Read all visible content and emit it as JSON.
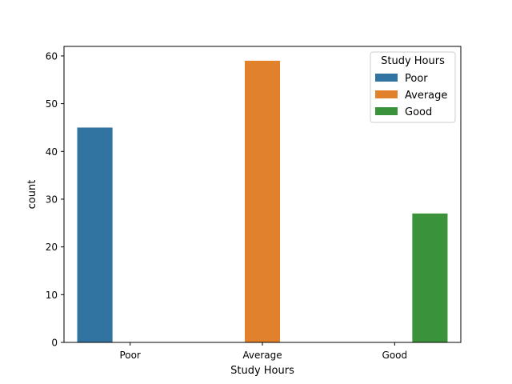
{
  "chart_data": {
    "type": "bar",
    "title": "",
    "xlabel": "Study Hours",
    "ylabel": "count",
    "categories": [
      "Poor",
      "Average",
      "Good"
    ],
    "series": [
      {
        "name": "Poor",
        "values": [
          45,
          null,
          null
        ],
        "color": "#3274a1"
      },
      {
        "name": "Average",
        "values": [
          null,
          59,
          null
        ],
        "color": "#e1812c"
      },
      {
        "name": "Good",
        "values": [
          null,
          null,
          27
        ],
        "color": "#3a923a"
      }
    ],
    "ylim": [
      0,
      62
    ],
    "yticks": [
      0,
      10,
      20,
      30,
      40,
      50,
      60
    ],
    "grid": false,
    "legend": {
      "title": "Study Hours",
      "placement": "top-right",
      "entries": [
        "Poor",
        "Average",
        "Good"
      ]
    }
  }
}
